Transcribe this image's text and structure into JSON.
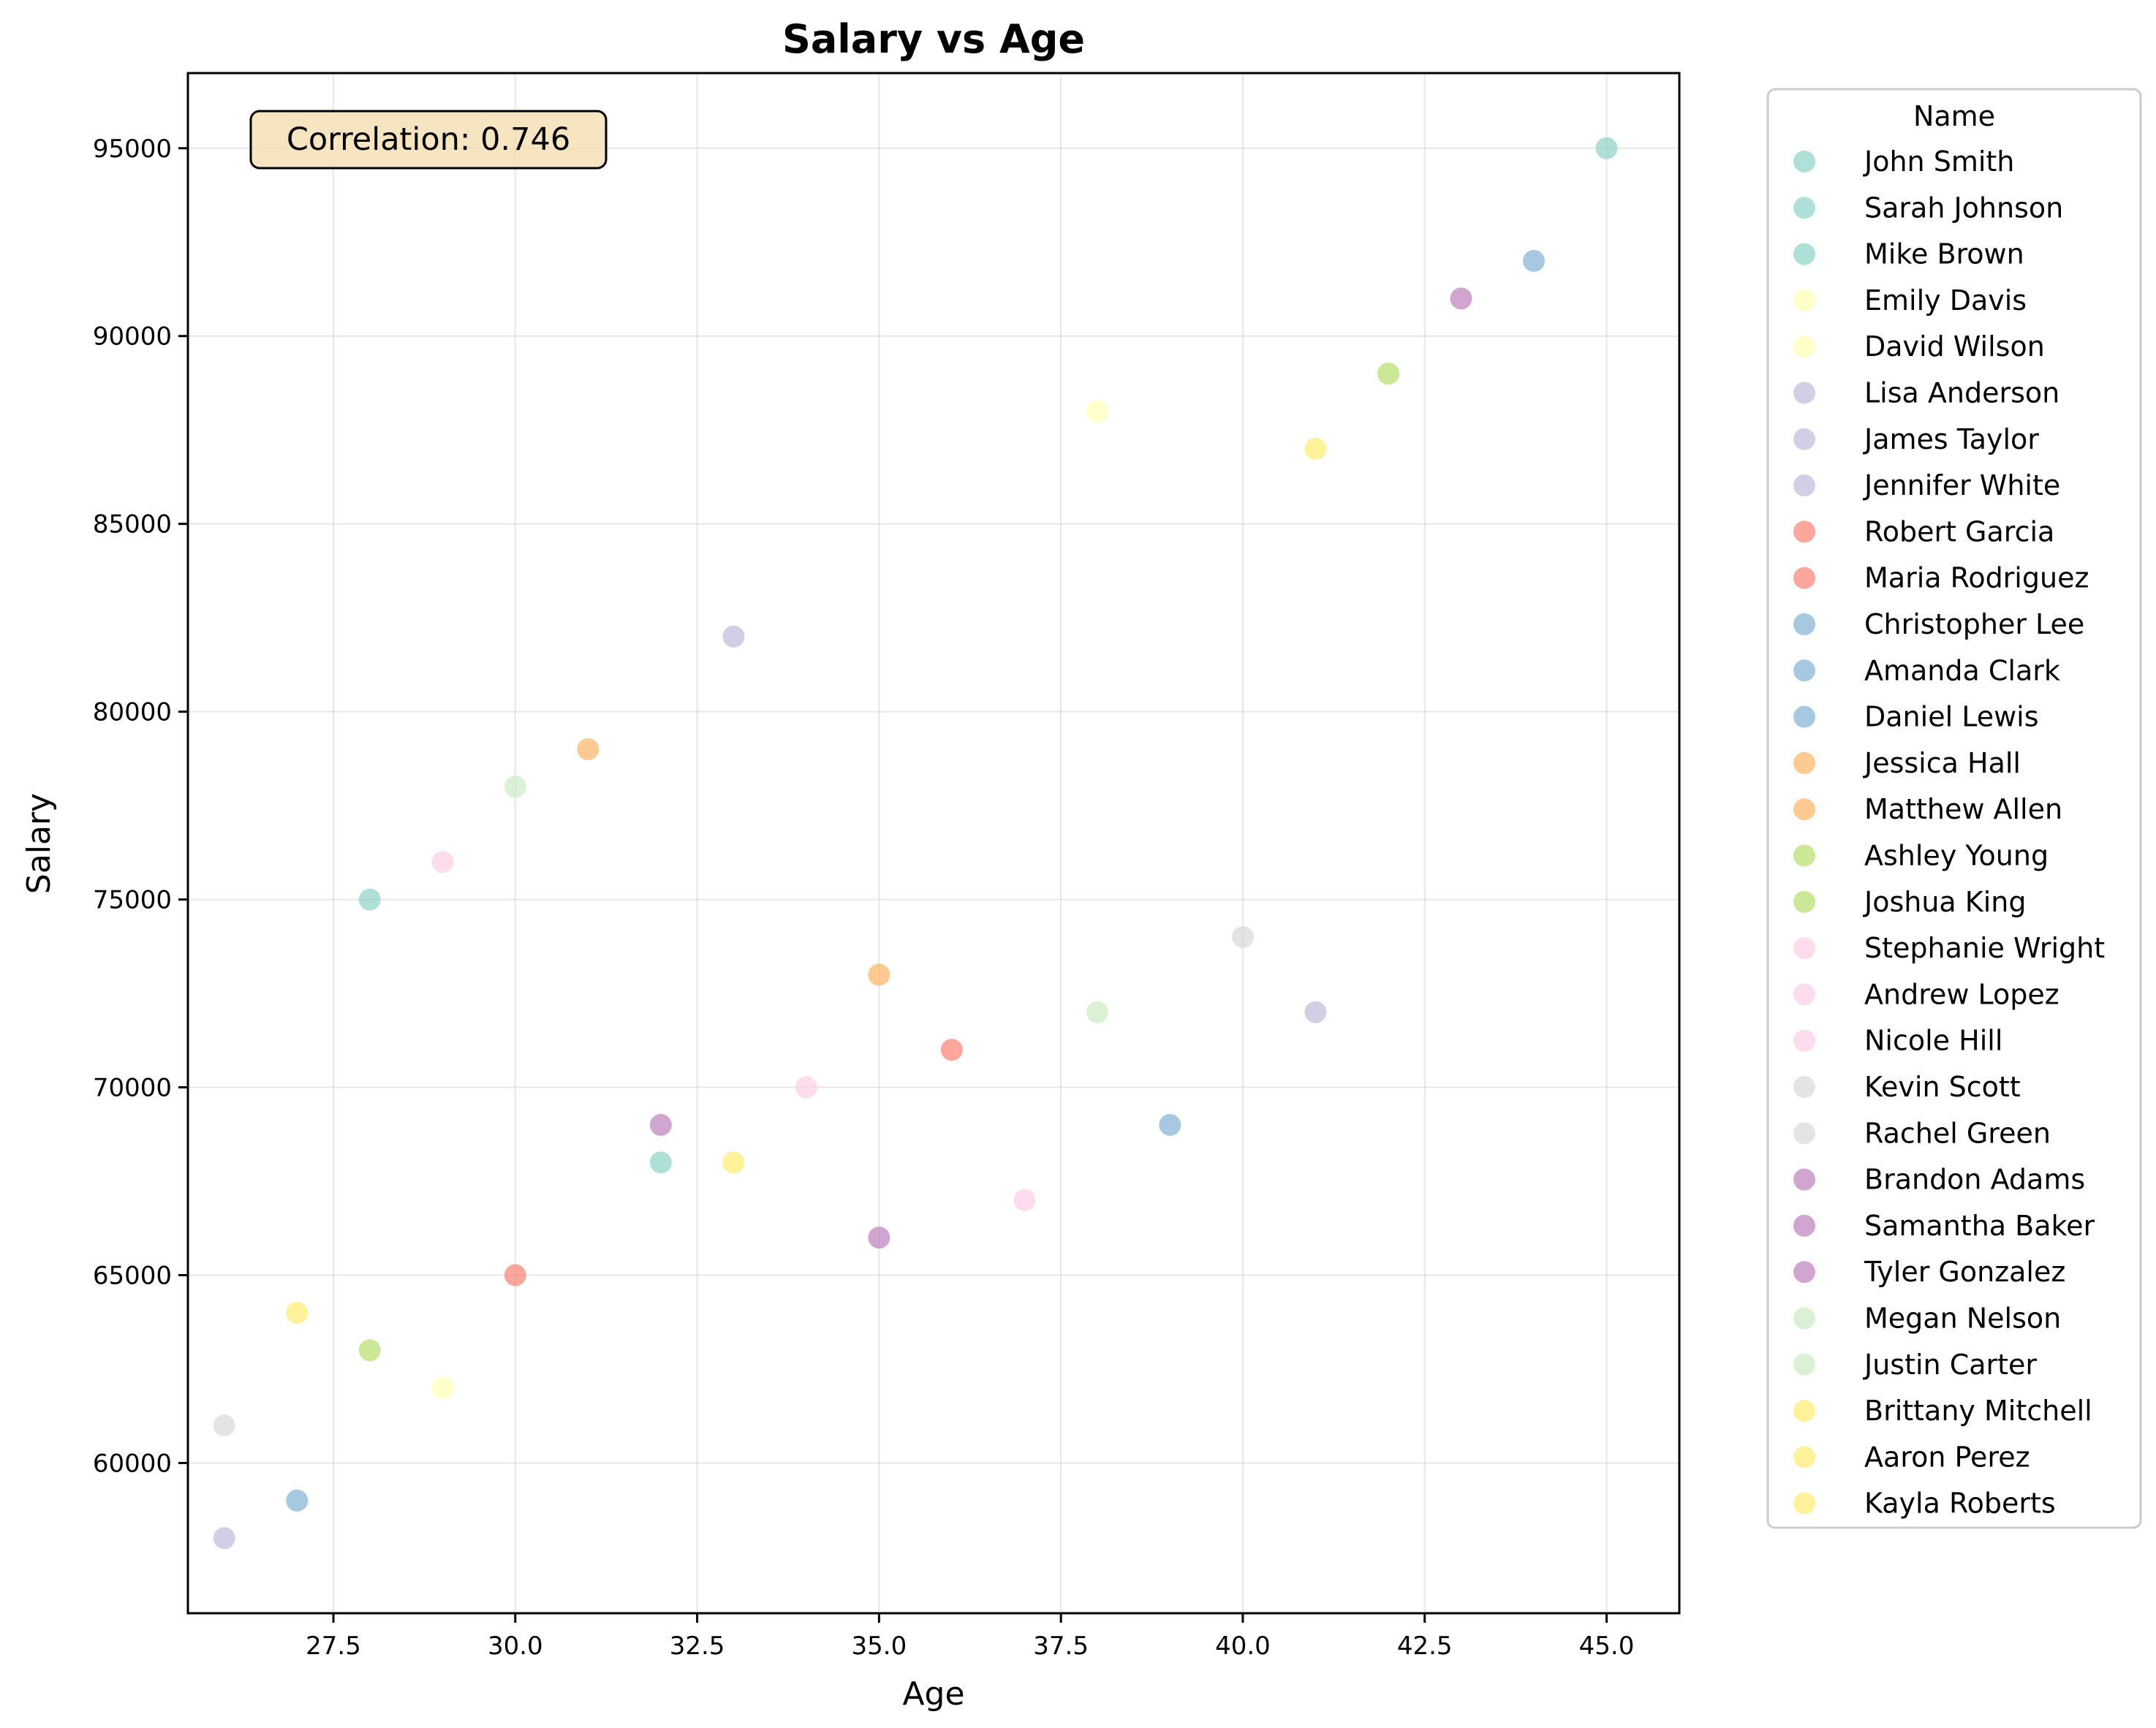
{
  "chart_data": {
    "type": "scatter",
    "title": "Salary vs Age",
    "xlabel": "Age",
    "ylabel": "Salary",
    "xlim": [
      25.5,
      46.0
    ],
    "ylim": [
      56000,
      97000
    ],
    "xticks": [
      27.5,
      30.0,
      32.5,
      35.0,
      37.5,
      40.0,
      42.5,
      45.0
    ],
    "xtick_labels": [
      "27.5",
      "30.0",
      "32.5",
      "35.0",
      "37.5",
      "40.0",
      "42.5",
      "45.0"
    ],
    "yticks": [
      60000,
      65000,
      70000,
      75000,
      80000,
      85000,
      90000,
      95000
    ],
    "ytick_labels": [
      "60000",
      "65000",
      "70000",
      "75000",
      "80000",
      "85000",
      "90000",
      "95000"
    ],
    "grid": true,
    "legend_title": "Name",
    "legend_position": "outside-right",
    "annotation": "Correlation: 0.746",
    "annotation_position": "top-left",
    "series": [
      {
        "name": "John Smith",
        "color": "#8dd3c7",
        "x": 28,
        "y": 75000
      },
      {
        "name": "Sarah Johnson",
        "color": "#8dd3c7",
        "x": 32,
        "y": 68000
      },
      {
        "name": "Mike Brown",
        "color": "#8dd3c7",
        "x": 45,
        "y": 95000
      },
      {
        "name": "Emily Davis",
        "color": "#ffffb3",
        "x": 29,
        "y": 62000
      },
      {
        "name": "David Wilson",
        "color": "#ffffb3",
        "x": 38,
        "y": 88000
      },
      {
        "name": "Lisa Anderson",
        "color": "#bebada",
        "x": 26,
        "y": 58000
      },
      {
        "name": "James Taylor",
        "color": "#bebada",
        "x": 33,
        "y": 82000
      },
      {
        "name": "Jennifer White",
        "color": "#bebada",
        "x": 41,
        "y": 72000
      },
      {
        "name": "Robert Garcia",
        "color": "#fb8072",
        "x": 30,
        "y": 65000
      },
      {
        "name": "Maria Rodriguez",
        "color": "#fb8072",
        "x": 36,
        "y": 71000
      },
      {
        "name": "Christopher Lee",
        "color": "#80b1d3",
        "x": 44,
        "y": 92000
      },
      {
        "name": "Amanda Clark",
        "color": "#80b1d3",
        "x": 27,
        "y": 59000
      },
      {
        "name": "Daniel Lewis",
        "color": "#80b1d3",
        "x": 39,
        "y": 69000
      },
      {
        "name": "Jessica Hall",
        "color": "#fdb462",
        "x": 31,
        "y": 79000
      },
      {
        "name": "Matthew Allen",
        "color": "#fdb462",
        "x": 35,
        "y": 73000
      },
      {
        "name": "Ashley Young",
        "color": "#b3de69",
        "x": 28,
        "y": 63000
      },
      {
        "name": "Joshua King",
        "color": "#b3de69",
        "x": 42,
        "y": 89000
      },
      {
        "name": "Stephanie Wright",
        "color": "#fccde5",
        "x": 34,
        "y": 70000
      },
      {
        "name": "Andrew Lopez",
        "color": "#fccde5",
        "x": 29,
        "y": 76000
      },
      {
        "name": "Nicole Hill",
        "color": "#fccde5",
        "x": 37,
        "y": 67000
      },
      {
        "name": "Kevin Scott",
        "color": "#d9d9d9",
        "x": 40,
        "y": 74000
      },
      {
        "name": "Rachel Green",
        "color": "#d9d9d9",
        "x": 26,
        "y": 61000
      },
      {
        "name": "Brandon Adams",
        "color": "#bc80bd",
        "x": 43,
        "y": 91000
      },
      {
        "name": "Samantha Baker",
        "color": "#bc80bd",
        "x": 32,
        "y": 69000
      },
      {
        "name": "Tyler Gonzalez",
        "color": "#bc80bd",
        "x": 35,
        "y": 66000
      },
      {
        "name": "Megan Nelson",
        "color": "#ccebc5",
        "x": 30,
        "y": 78000
      },
      {
        "name": "Justin Carter",
        "color": "#ccebc5",
        "x": 38,
        "y": 72000
      },
      {
        "name": "Brittany Mitchell",
        "color": "#ffed6f",
        "x": 27,
        "y": 64000
      },
      {
        "name": "Aaron Perez",
        "color": "#ffed6f",
        "x": 33,
        "y": 68000
      },
      {
        "name": "Kayla Roberts",
        "color": "#ffed6f",
        "x": 41,
        "y": 87000
      }
    ]
  }
}
